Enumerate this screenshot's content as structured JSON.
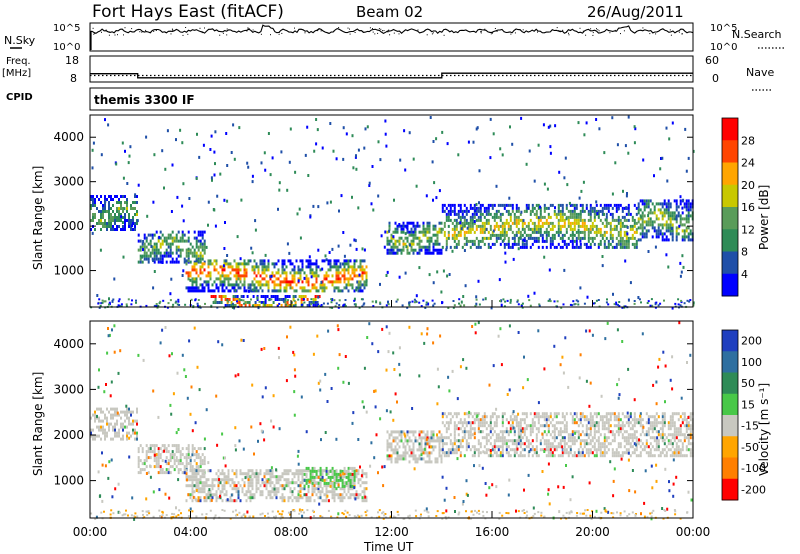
{
  "header": {
    "station": "Fort Hays East (fitACF)",
    "beam": "Beam 02",
    "date": "26/Aug/2011"
  },
  "left_labels": {
    "nsky": "N.Sky",
    "freq": "Freq.",
    "freq_unit": "[MHz]",
    "cpid": "CPID"
  },
  "right_labels": {
    "nsearch": "N.Search",
    "nave": "Nave"
  },
  "cpid_text": "themis 3300 IF",
  "colors": {
    "power_scale": [
      "#0000ff",
      "#1f4fa8",
      "#2e8b57",
      "#5a9c5a",
      "#c8c800",
      "#ffa500",
      "#ff4500",
      "#ff0000"
    ],
    "velocity_scale": [
      "#1f3fbf",
      "#2e6fa0",
      "#2e8b57",
      "#48c848",
      "#c8c8c0",
      "#ffa500",
      "#ff7f00",
      "#ff0000"
    ]
  },
  "chart_data": [
    {
      "type": "line",
      "panel": "noise",
      "left_axis_ticks": [
        "10^5",
        "10^0"
      ],
      "right_axis_ticks": [
        "10^5",
        "10^0"
      ],
      "left_label": "N.Sky",
      "right_label": "N.Search"
    },
    {
      "type": "line",
      "panel": "frequency",
      "left_axis_ticks": [
        "18",
        "8"
      ],
      "right_axis_ticks": [
        "60",
        "0"
      ],
      "left_label": "Freq.",
      "left_unit": "[MHz]",
      "right_label": "Nave",
      "series": [
        {
          "name": "Freq.",
          "x_hours": [
            0,
            1.9,
            1.9,
            14,
            14,
            24
          ],
          "values": [
            11.2,
            11.2,
            9.6,
            9.6,
            11.4,
            11.4
          ]
        },
        {
          "name": "Nave",
          "x_hours": [
            0,
            24
          ],
          "values": [
            15,
            15
          ]
        }
      ]
    },
    {
      "type": "heatmap",
      "panel": "power",
      "ylabel": "Slant Range [km]",
      "yticks": [
        "1000",
        "2000",
        "3000",
        "4000"
      ],
      "ylim": [
        180,
        4500
      ],
      "colorbar_label": "Power [dB]",
      "colorbar_ticks": [
        "4",
        "8",
        "12",
        "16",
        "20",
        "24",
        "28"
      ],
      "colorbar_range": [
        0,
        32
      ],
      "bands": [
        {
          "t0": 0.0,
          "t1": 1.9,
          "r0": 1900,
          "r1": 2700,
          "level": 0.45
        },
        {
          "t0": 1.9,
          "t1": 4.6,
          "r0": 1200,
          "r1": 1900,
          "level": 0.5
        },
        {
          "t0": 3.8,
          "t1": 11.0,
          "r0": 560,
          "r1": 1250,
          "level": 0.85
        },
        {
          "t0": 4.8,
          "t1": 9.2,
          "r0": 180,
          "r1": 450,
          "level": 0.9
        },
        {
          "t0": 11.8,
          "t1": 14.0,
          "r0": 1400,
          "r1": 2100,
          "level": 0.55
        },
        {
          "t0": 14.0,
          "t1": 21.8,
          "r0": 1500,
          "r1": 2500,
          "level": 0.6
        },
        {
          "t0": 21.8,
          "t1": 24.0,
          "r0": 1700,
          "r1": 2600,
          "level": 0.55
        }
      ]
    },
    {
      "type": "heatmap",
      "panel": "velocity",
      "ylabel": "Slant Range [km]",
      "xlabel": "Time UT",
      "yticks": [
        "1000",
        "2000",
        "3000",
        "4000"
      ],
      "ylim": [
        180,
        4500
      ],
      "xticks": [
        "00:00",
        "04:00",
        "08:00",
        "12:00",
        "16:00",
        "20:00",
        "00:00"
      ],
      "xlim": [
        0,
        24
      ],
      "colorbar_label": "Velocity [m s⁻¹]",
      "colorbar_ticks": [
        "200",
        "100",
        "50",
        "15",
        "-15",
        "-50",
        "-100",
        "-200"
      ],
      "bands": [
        {
          "t0": 0.0,
          "t1": 1.9,
          "r0": 1900,
          "r1": 2600,
          "level": 0.5
        },
        {
          "t0": 1.9,
          "t1": 4.6,
          "r0": 1200,
          "r1": 1800,
          "level": 0.5
        },
        {
          "t0": 3.8,
          "t1": 11.0,
          "r0": 560,
          "r1": 1250,
          "level": 0.5
        },
        {
          "t0": 8.5,
          "t1": 10.5,
          "r0": 900,
          "r1": 1300,
          "level": 0.3
        },
        {
          "t0": 11.8,
          "t1": 14.0,
          "r0": 1400,
          "r1": 2100,
          "level": 0.5
        },
        {
          "t0": 14.0,
          "t1": 24.0,
          "r0": 1550,
          "r1": 2500,
          "level": 0.5
        }
      ]
    }
  ]
}
